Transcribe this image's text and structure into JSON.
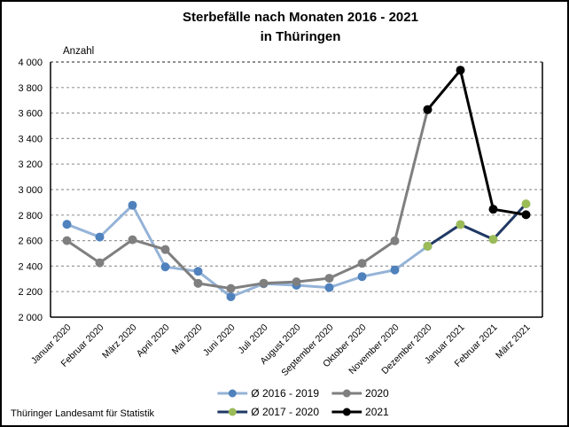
{
  "chart_data": {
    "type": "line",
    "title": "Sterbefälle nach Monaten 2016 - 2021",
    "subtitle": "in Thüringen",
    "ylabel": "Anzahl",
    "source": "Thüringer Landesamt für Statistik",
    "ylim": [
      2000,
      4000
    ],
    "ytick_step": 200,
    "grid": "horizontal-dashed",
    "legend_position": "bottom-center",
    "categories": [
      "Januar 2020",
      "Februar 2020",
      "März 2020",
      "April 2020",
      "Mai 2020",
      "Juni 2020",
      "Juli 2020",
      "August 2020",
      "September 2020",
      "Oktober 2020",
      "November 2020",
      "Dezember 2020",
      "Januar 2021",
      "Februar 2021",
      "März 2021"
    ],
    "series": [
      {
        "name": "Ø 2016 - 2019",
        "line_color": "#95B3D7",
        "marker_color": "#4F81BD",
        "start_index": 0,
        "values": [
          2728,
          2628,
          2877,
          2394,
          2359,
          2160,
          2262,
          2250,
          2232,
          2318,
          2370,
          2556
        ]
      },
      {
        "name": "2020",
        "line_color": "#7F7F7F",
        "marker_color": "#7F7F7F",
        "start_index": 0,
        "values": [
          2600,
          2426,
          2607,
          2530,
          2265,
          2225,
          2266,
          2277,
          2305,
          2422,
          2598,
          3627
        ]
      },
      {
        "name": "Ø 2017 - 2020",
        "line_color": "#1F3864",
        "marker_color": "#9BBB59",
        "start_index": 11,
        "values": [
          2556,
          2726,
          2610,
          2888
        ]
      },
      {
        "name": "2021",
        "line_color": "#000000",
        "marker_color": "#000000",
        "start_index": 11,
        "values": [
          3627,
          3936,
          2846,
          2803
        ]
      }
    ]
  }
}
